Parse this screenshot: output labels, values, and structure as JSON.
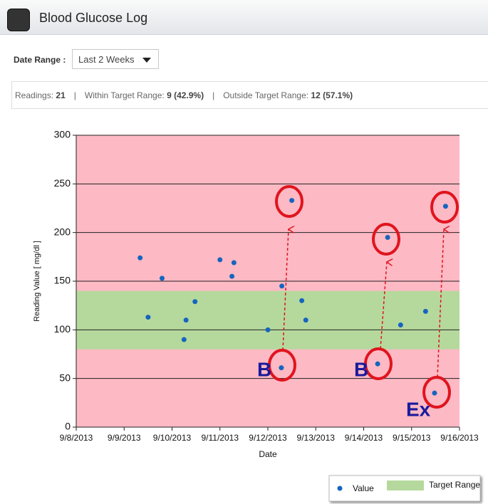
{
  "header": {
    "title": "Blood Glucose Log"
  },
  "filter": {
    "label": "Date Range :",
    "selected": "Last 2 Weeks"
  },
  "summary": {
    "separator": "|",
    "readings": {
      "label": "Readings:",
      "value": "21"
    },
    "within": {
      "label": "Within Target Range:",
      "value": "9 (42.9%)"
    },
    "outside": {
      "label": "Outside Target Range:",
      "value": "12 (57.1%)"
    }
  },
  "chart_data": {
    "type": "scatter",
    "xlabel": "Date",
    "ylabel": "Reading Value [ mg/dl ]",
    "background": "#fdb9c4",
    "grid": true,
    "legend": "bottom-right",
    "x": [
      "2013-09-09T08:00Z",
      "2013-09-09T12:00Z",
      "2013-09-09T19:00Z",
      "2013-09-10T07:00Z",
      "2013-09-10T06:00Z",
      "2013-09-10T11:30Z",
      "2013-09-11T00:00Z",
      "2013-09-11T07:00Z",
      "2013-09-11T06:00Z",
      "2013-09-12T00:00Z",
      "2013-09-12T07:00Z",
      "2013-09-12T06:45Z",
      "2013-09-12T12:00Z",
      "2013-09-12T17:00Z",
      "2013-09-12T19:00Z",
      "2013-09-14T07:00Z",
      "2013-09-14T12:00Z",
      "2013-09-14T18:30Z",
      "2013-09-15T07:00Z",
      "2013-09-15T11:30Z",
      "2013-09-15T17:00Z"
    ],
    "series": [
      {
        "name": "Value",
        "color": "#1565c0",
        "values": [
          174,
          113,
          153,
          110,
          90,
          129,
          172,
          169,
          155,
          100,
          145,
          61,
          233,
          130,
          110,
          65,
          195,
          105,
          119,
          35,
          227
        ]
      }
    ],
    "target_range": {
      "name": "Target Range",
      "color": "#b5d99c",
      "range": [
        80,
        140
      ]
    },
    "xlim": [
      "2013-09-08T00:00Z",
      "2013-09-16T00:00Z"
    ],
    "xticks": [
      {
        "value": "2013-09-08T00:00Z",
        "label": "9/8/2013"
      },
      {
        "value": "2013-09-09T00:00Z",
        "label": "9/9/2013"
      },
      {
        "value": "2013-09-10T00:00Z",
        "label": "9/10/2013"
      },
      {
        "value": "2013-09-11T00:00Z",
        "label": "9/11/2013"
      },
      {
        "value": "2013-09-12T00:00Z",
        "label": "9/12/2013"
      },
      {
        "value": "2013-09-13T00:00Z",
        "label": "9/13/2013"
      },
      {
        "value": "2013-09-14T00:00Z",
        "label": "9/14/2013"
      },
      {
        "value": "2013-09-15T00:00Z",
        "label": "9/15/2013"
      },
      {
        "value": "2013-09-16T00:00Z",
        "label": "9/16/2013"
      }
    ],
    "ylim": [
      0,
      300
    ],
    "yticks": [
      0,
      50,
      100,
      150,
      200,
      250,
      300
    ],
    "annotations": [
      "B",
      "B",
      "Ex"
    ]
  }
}
